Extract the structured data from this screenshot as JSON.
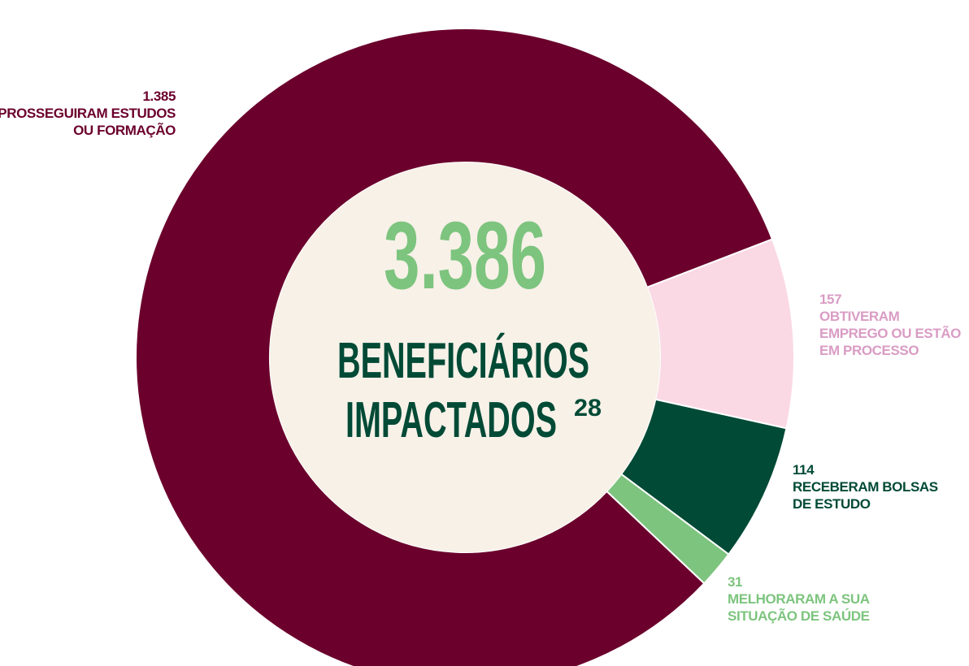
{
  "chart_data": {
    "type": "donut",
    "categories": [
      "PROSSEGUIRAM ESTUDOS OU FORMAÇÃO",
      "OBTIVERAM EMPREGO OU ESTÃO EM PROCESSO",
      "RECEBERAM BOLSAS DE ESTUDO",
      "MELHORARAM A SUA SITUAÇÃO DE SAÚDE"
    ],
    "values": [
      1385,
      157,
      114,
      31
    ],
    "value_labels": [
      "1.385",
      "157",
      "114",
      "31"
    ],
    "colors": [
      "#6b002c",
      "#fad9e4",
      "#004a36",
      "#7dc47e"
    ],
    "label_colors": [
      "#6b002c",
      "#d99cc4",
      "#004a36",
      "#7dc47e"
    ],
    "center_total": "3.386",
    "center_title_line1": "BENEFICIÁRIOS",
    "center_title_line2": "IMPACTADOS",
    "center_footnote": "28"
  }
}
